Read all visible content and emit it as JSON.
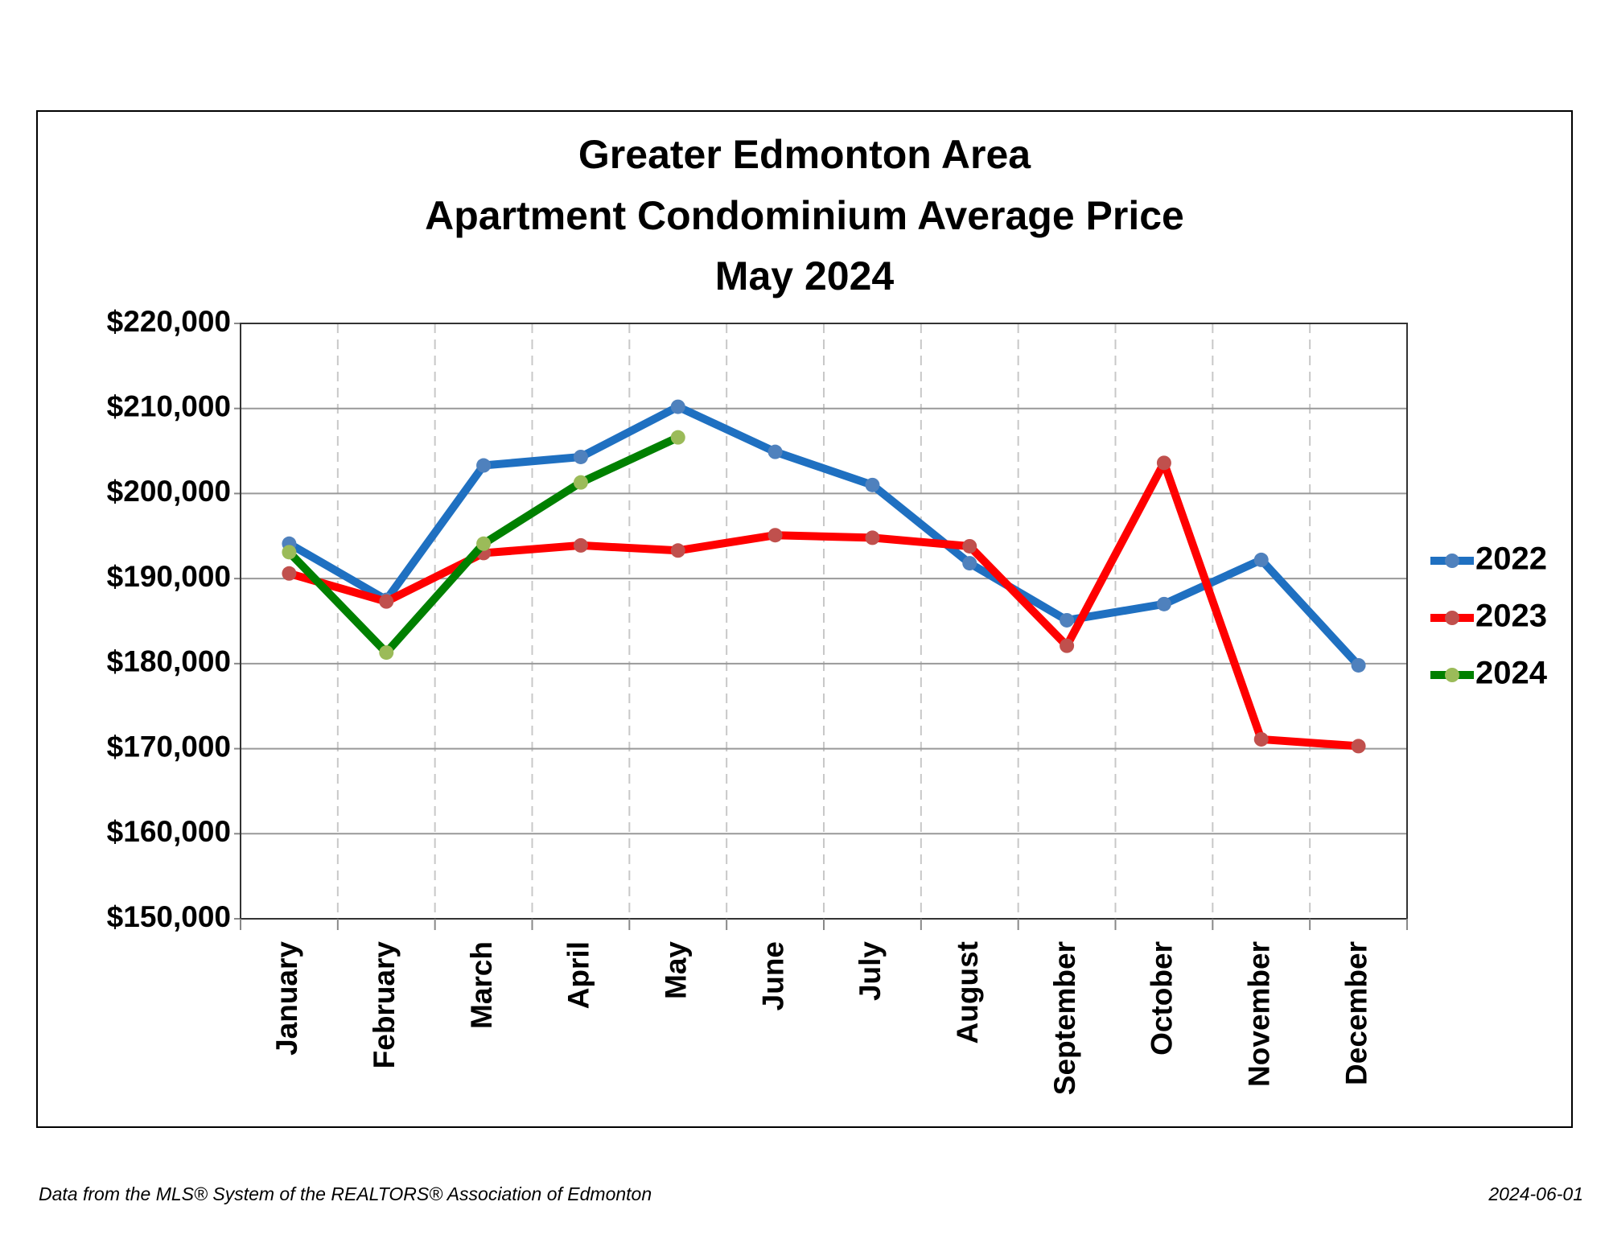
{
  "chart_data": {
    "type": "line",
    "title": [
      "Greater Edmonton Area",
      "Apartment Condominium Average Price",
      "May 2024"
    ],
    "categories": [
      "January",
      "February",
      "March",
      "April",
      "May",
      "June",
      "July",
      "August",
      "September",
      "October",
      "November",
      "December"
    ],
    "series": [
      {
        "name": "2022",
        "color": "#1f70c1",
        "marker_color": "#4f81bd",
        "values": [
          194100,
          187500,
          203300,
          204300,
          210200,
          204900,
          201000,
          191800,
          185100,
          187000,
          192200,
          179800
        ]
      },
      {
        "name": "2023",
        "color": "#ff0000",
        "marker_color": "#c0504d",
        "values": [
          190600,
          187300,
          193000,
          193900,
          193300,
          195100,
          194800,
          193800,
          182100,
          203600,
          171100,
          170300
        ]
      },
      {
        "name": "2024",
        "color": "#008000",
        "marker_color": "#9bbb59",
        "values": [
          193100,
          181300,
          194100,
          201300,
          206600,
          null,
          null,
          null,
          null,
          null,
          null,
          null
        ]
      }
    ],
    "ylim": [
      150000,
      220000
    ],
    "yticks": [
      {
        "value": 150000,
        "label": "$150,000"
      },
      {
        "value": 160000,
        "label": "$160,000"
      },
      {
        "value": 170000,
        "label": "$170,000"
      },
      {
        "value": 180000,
        "label": "$180,000"
      },
      {
        "value": 190000,
        "label": "$190,000"
      },
      {
        "value": 200000,
        "label": "$200,000"
      },
      {
        "value": 210000,
        "label": "$210,000"
      },
      {
        "value": 220000,
        "label": "$220,000"
      }
    ],
    "grid": true,
    "legend": "right",
    "footer_left": "Data from the MLS® System of the REALTORS® Association of Edmonton",
    "footer_right": "2024-06-01"
  }
}
